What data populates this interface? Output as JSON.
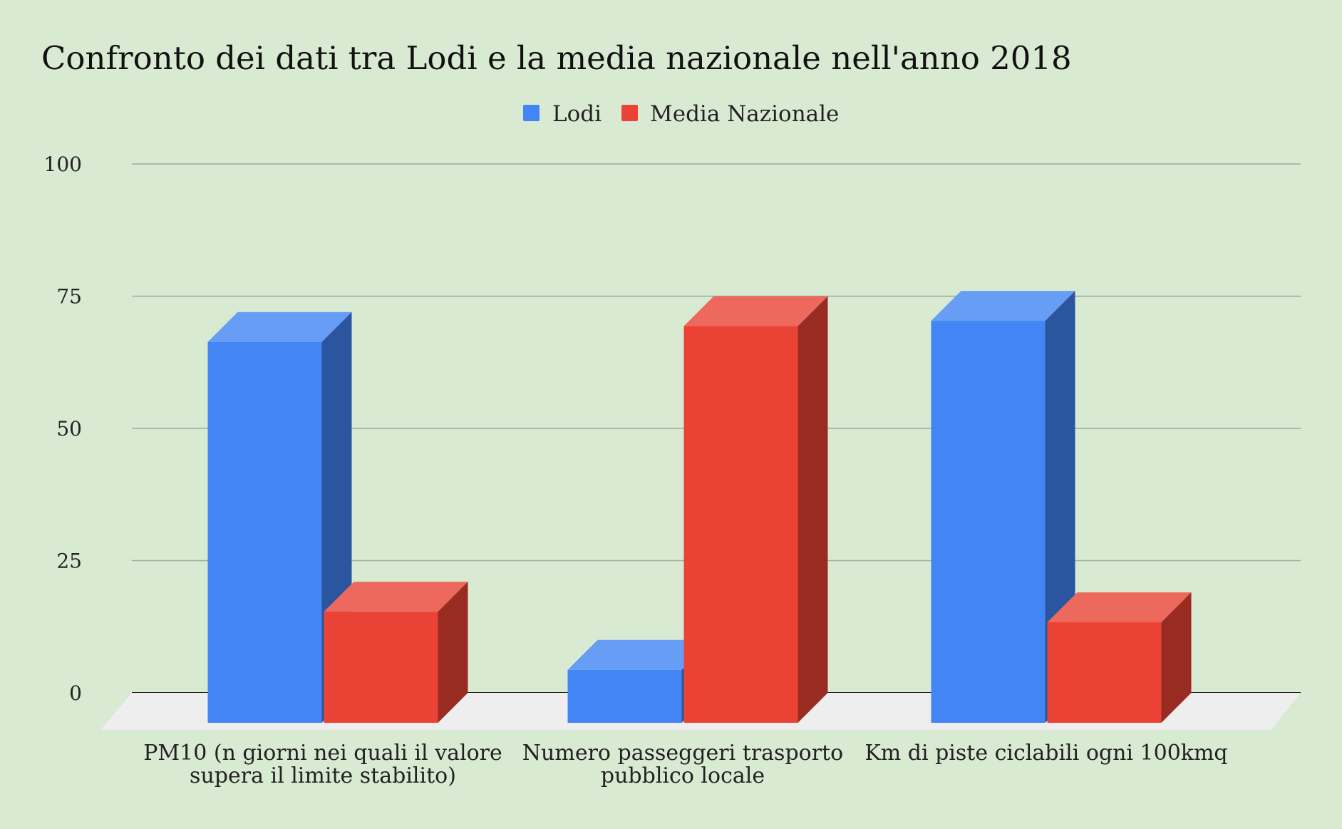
{
  "chart_data": {
    "type": "bar",
    "title": "Confronto dei dati tra Lodi e la media nazionale nell'anno 2018",
    "categories": [
      [
        "PM10 (n giorni nei quali il valore",
        "supera il limite stabilito)"
      ],
      [
        "Numero passeggeri trasporto",
        "pubblico locale"
      ],
      [
        "Km di piste ciclabili ogni 100kmq"
      ]
    ],
    "series": [
      {
        "name": "Lodi",
        "values": [
          72,
          10,
          76
        ],
        "color": "#4285f4"
      },
      {
        "name": "Media Nazionale",
        "values": [
          21,
          75,
          19
        ],
        "color": "#ea4335"
      }
    ],
    "yticks": [
      "0",
      "25",
      "50",
      "75",
      "100"
    ],
    "ylim": [
      0,
      100
    ],
    "legend_position": "top-center",
    "grid": true,
    "style": "3d"
  }
}
